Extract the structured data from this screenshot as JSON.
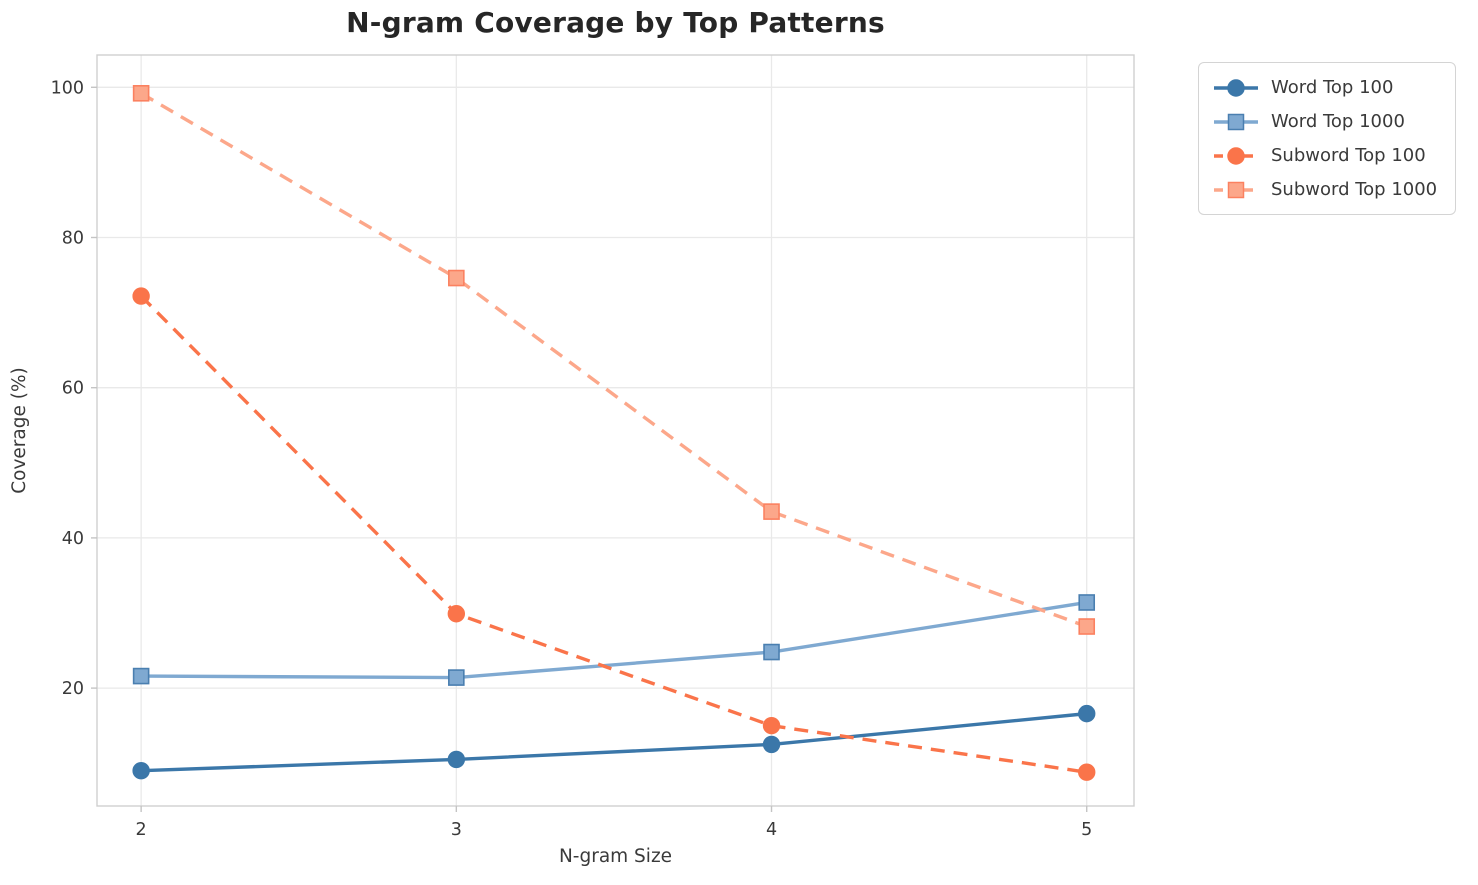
{
  "title": "N-gram Coverage by Top Patterns",
  "chart_data": {
    "type": "line",
    "title": "N-gram Coverage by Top Patterns",
    "xlabel": "N-gram Size",
    "ylabel": "Coverage (%)",
    "x": [
      2,
      3,
      4,
      5
    ],
    "series": [
      {
        "name": "Word Top 100",
        "values": [
          9.0,
          10.5,
          12.5,
          16.6
        ],
        "color": "#3b77a9",
        "edge": "#3b77a9",
        "marker": "circle",
        "dash": "solid"
      },
      {
        "name": "Word Top 1000",
        "values": [
          21.6,
          21.4,
          24.8,
          31.4
        ],
        "color": "#7fa9d1",
        "edge": "#4a7fb0",
        "marker": "square",
        "dash": "solid"
      },
      {
        "name": "Subword Top 100",
        "values": [
          72.2,
          29.9,
          15.0,
          8.8
        ],
        "color": "#fa744a",
        "edge": "#fa744a",
        "marker": "circle",
        "dash": "dashed"
      },
      {
        "name": "Subword Top 1000",
        "values": [
          99.2,
          74.6,
          43.5,
          28.2
        ],
        "color": "#fca78a",
        "edge": "#fb8160",
        "marker": "square",
        "dash": "dashed"
      }
    ],
    "xticks": [
      2,
      3,
      4,
      5
    ],
    "yticks": [
      20,
      40,
      60,
      80,
      100
    ],
    "xlim": [
      1.86,
      5.15
    ],
    "ylim": [
      4.3,
      104.3
    ],
    "grid": true,
    "legend_position": "outside upper right"
  },
  "style_colors": {
    "grid": "#e9e9e9",
    "spine": "#cfcfcf",
    "tick": "#c4c4c4",
    "text": "#3a3a3a",
    "title_text": "#262626"
  }
}
